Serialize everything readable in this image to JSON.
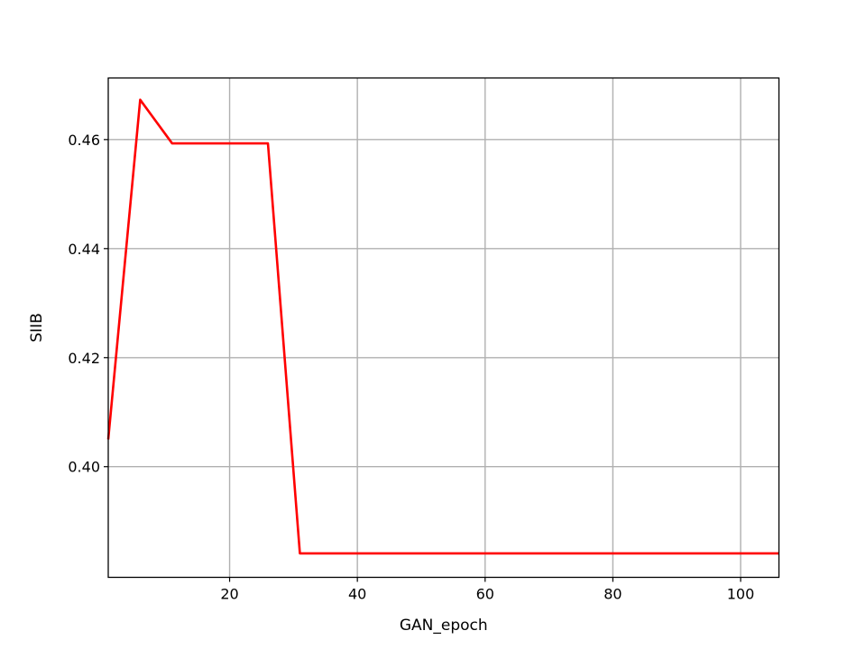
{
  "chart_data": {
    "type": "line",
    "title": "",
    "xlabel": "GAN_epoch",
    "ylabel": "SIIB",
    "xlim": [
      1,
      106
    ],
    "ylim": [
      0.3797,
      0.4713
    ],
    "x_ticks": [
      20,
      40,
      60,
      80,
      100
    ],
    "x_tick_labels": [
      "20",
      "40",
      "60",
      "80",
      "100"
    ],
    "y_ticks": [
      0.4,
      0.42,
      0.44,
      0.46
    ],
    "y_tick_labels": [
      "0.40",
      "0.42",
      "0.44",
      "0.46"
    ],
    "grid": true,
    "series": [
      {
        "color": "#ff0000",
        "x": [
          1,
          6,
          11,
          16,
          21,
          26,
          31,
          36,
          41,
          46,
          51,
          56,
          61,
          66,
          71,
          76,
          81,
          86,
          91,
          96,
          101,
          106
        ],
        "y": [
          0.405,
          0.4673,
          0.4593,
          0.4593,
          0.4593,
          0.4593,
          0.3841,
          0.3841,
          0.3841,
          0.3841,
          0.3841,
          0.3841,
          0.3841,
          0.3841,
          0.3841,
          0.3841,
          0.3841,
          0.3841,
          0.3841,
          0.3841,
          0.3841,
          0.3841
        ]
      }
    ]
  }
}
